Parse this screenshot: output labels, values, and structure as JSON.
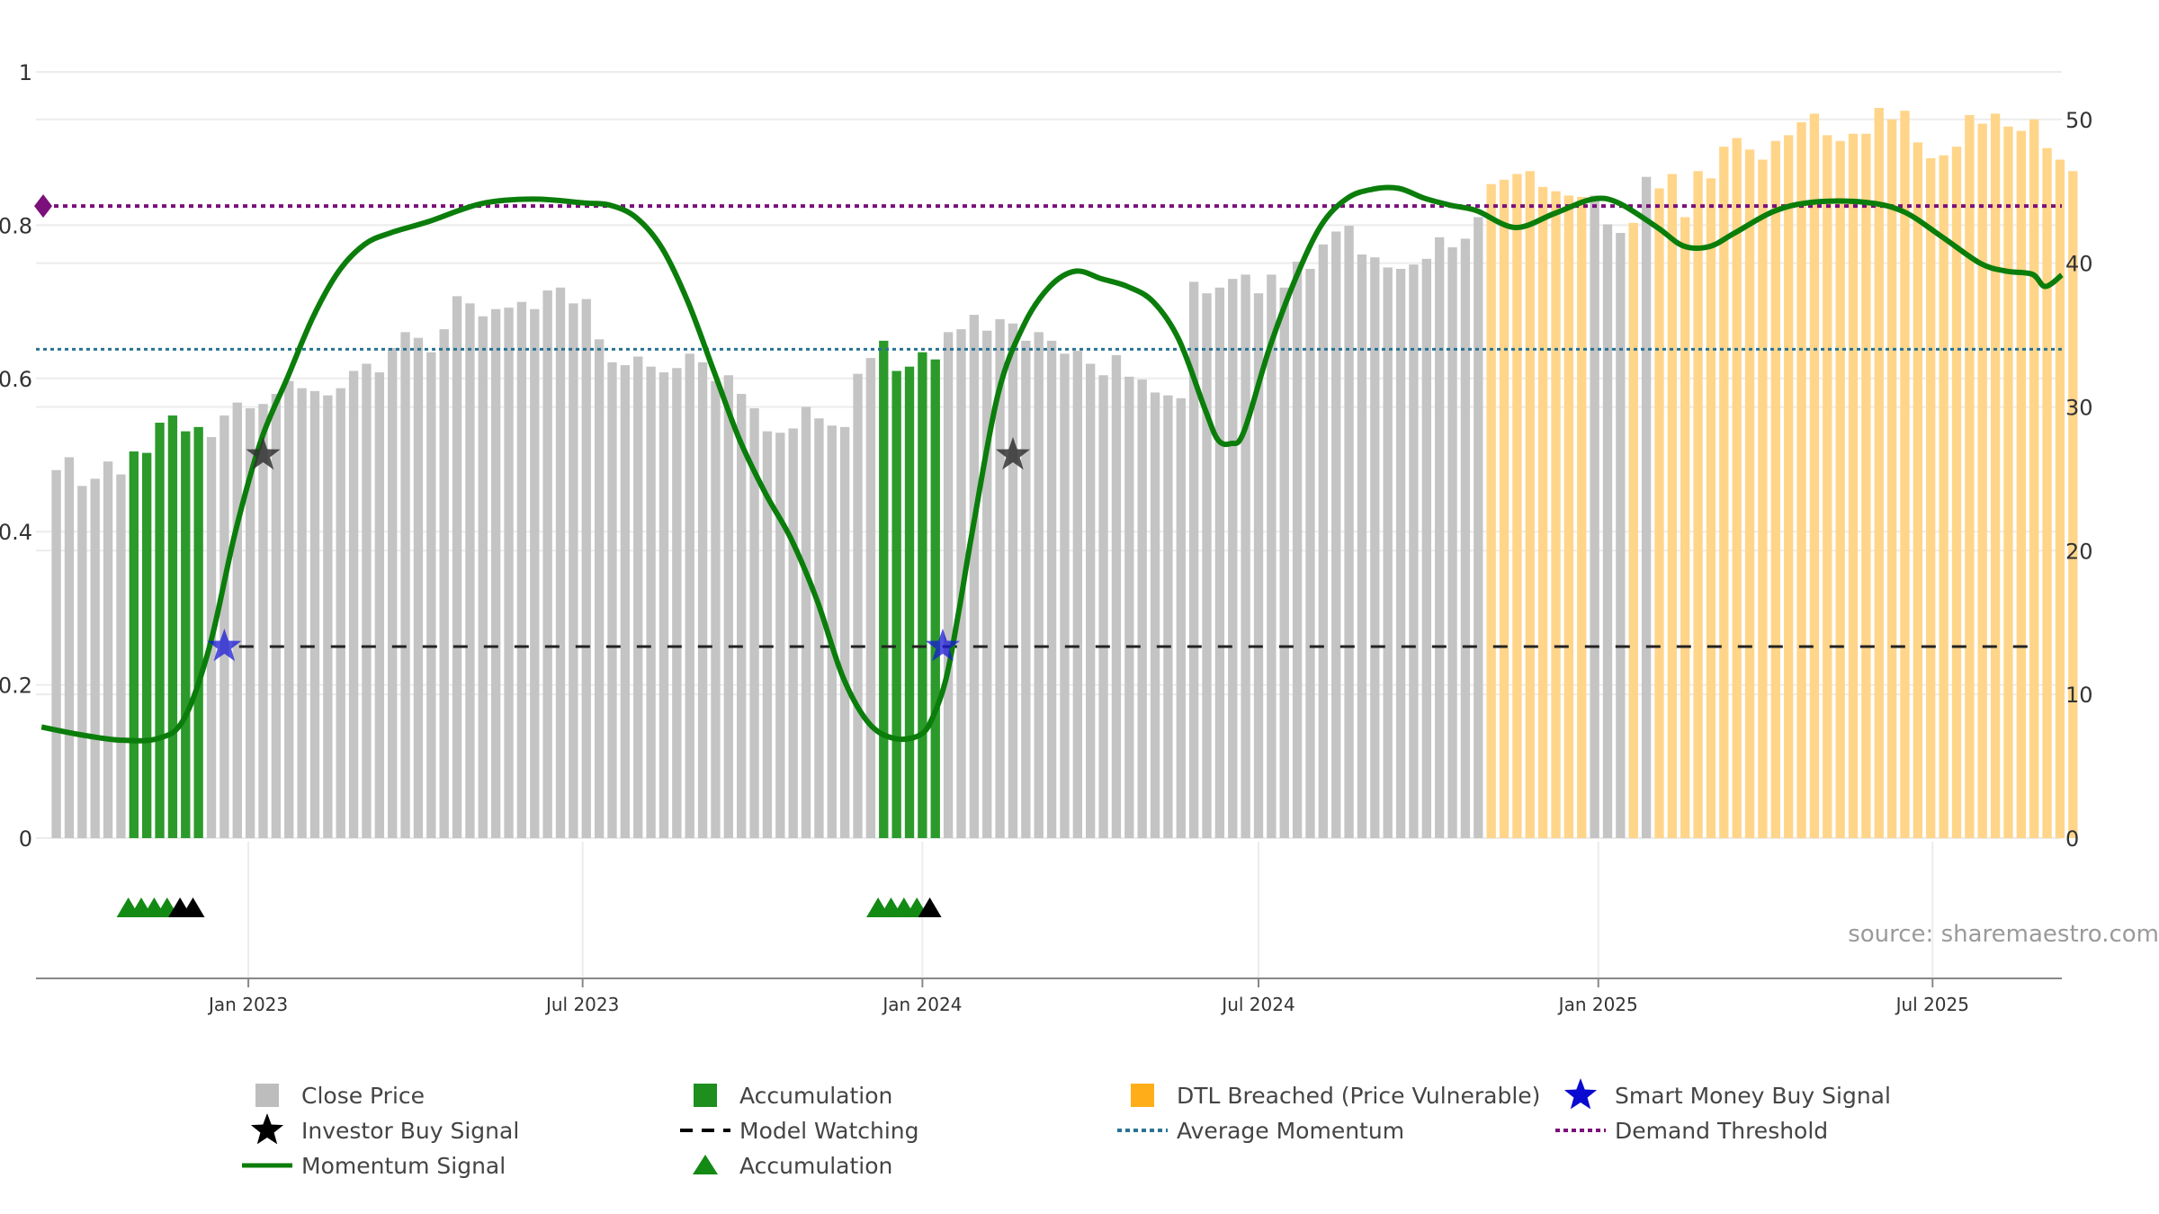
{
  "source_text": "source: sharemaestro.com",
  "colors": {
    "close": "#c4c4c4",
    "accumulation": "#2b9a2b",
    "dtl": "#ffd58a",
    "momentum": "#0b7d0b",
    "momentum_faded": "#5a9a5a",
    "avg": "#2a7394",
    "demand": "#7b0f7b",
    "smart": "#1a1ad6",
    "watch": "#222222",
    "grid": "#ececec"
  },
  "legend": [
    {
      "label": "Close Price",
      "icon": "gray-square"
    },
    {
      "label": "Accumulation",
      "icon": "green-square"
    },
    {
      "label": "DTL Breached (Price Vulnerable)",
      "icon": "orange-square"
    },
    {
      "label": "Smart Money Buy Signal",
      "icon": "blue-star"
    },
    {
      "label": "Investor Buy Signal",
      "icon": "black-star"
    },
    {
      "label": "Model Watching",
      "icon": "dashed-line"
    },
    {
      "label": "Average Momentum",
      "icon": "blue-dotted-line"
    },
    {
      "label": "Demand Threshold",
      "icon": "purple-dotted-line"
    },
    {
      "label": "Momentum Signal",
      "icon": "green-line"
    },
    {
      "label": "Accumulation",
      "icon": "green-triangle"
    }
  ],
  "chart_data": {
    "type": "bar",
    "left_axis": {
      "ticks": [
        "0",
        "0.2",
        "0.4",
        "0.6",
        "0.8",
        "1"
      ],
      "range": [
        0,
        1
      ]
    },
    "right_axis": {
      "ticks": [
        "0",
        "10",
        "20",
        "30",
        "40",
        "50"
      ],
      "range": [
        0,
        53.3
      ]
    },
    "x_ticks": [
      "Jan 2023",
      "Jul 2023",
      "Jan 2024",
      "Jul 2024",
      "Jan 2025",
      "Jul 2025"
    ],
    "x_range": [
      "2022-09-08",
      "2025-09-09"
    ],
    "grid": true,
    "legend_position": "bottom",
    "close_price": {
      "start_date": "2022-09-19",
      "interval_days": 7,
      "values": [
        25.6,
        26.5,
        24.5,
        25.0,
        26.2,
        25.3,
        26.9,
        26.8,
        28.9,
        29.4,
        28.3,
        28.6,
        27.9,
        29.4,
        30.3,
        29.9,
        30.2,
        30.9,
        31.8,
        31.3,
        31.1,
        30.8,
        31.3,
        32.5,
        33.0,
        32.4,
        34.1,
        35.2,
        34.8,
        33.8,
        35.4,
        37.7,
        37.2,
        36.3,
        36.8,
        36.9,
        37.3,
        36.8,
        38.1,
        38.3,
        37.2,
        37.5,
        34.7,
        33.1,
        32.9,
        33.5,
        32.8,
        32.4,
        32.7,
        33.7,
        33.1,
        31.8,
        32.2,
        30.9,
        29.9,
        28.3,
        28.2,
        28.5,
        30.0,
        29.2,
        28.7,
        28.6,
        32.3,
        33.4,
        34.6,
        32.5,
        32.8,
        33.8,
        33.3,
        35.2,
        35.4,
        36.4,
        35.3,
        36.1,
        35.8,
        34.6,
        35.2,
        34.6,
        33.7,
        33.9,
        33.0,
        32.2,
        33.6,
        32.1,
        31.9,
        31.0,
        30.8,
        30.6,
        38.7,
        37.9,
        38.3,
        38.9,
        39.2,
        37.9,
        39.2,
        38.3,
        40.1,
        39.6,
        41.3,
        42.2,
        42.6,
        40.6,
        40.4,
        39.7,
        39.6,
        39.9,
        40.3,
        41.8,
        41.1,
        41.7,
        43.2,
        45.5,
        45.8,
        46.2,
        46.4,
        45.3,
        45.0,
        44.7,
        44.6,
        44.7,
        42.7,
        42.1,
        42.8,
        46.0,
        45.2,
        46.2,
        43.2,
        46.4,
        45.9,
        48.1,
        48.7,
        47.9,
        47.2,
        48.5,
        48.9,
        49.8,
        50.4,
        48.9,
        48.5,
        49.0,
        49.0,
        50.8,
        50.0,
        50.6,
        48.4,
        47.3,
        47.5,
        48.1,
        50.3,
        49.7,
        50.4,
        49.5,
        49.2,
        50.0,
        48.0,
        47.2,
        46.4
      ],
      "accumulation_weeks": [
        6,
        7,
        8,
        9,
        10,
        11,
        64,
        65,
        66,
        67,
        68
      ],
      "dtl_weeks_from": 111,
      "dtl_exclude_weeks": [
        119,
        120,
        121,
        123
      ]
    },
    "momentum_signal": {
      "points": [
        [
          "2022-09-11",
          0.145
        ],
        [
          "2022-10-02",
          0.135
        ],
        [
          "2022-10-23",
          0.128
        ],
        [
          "2022-11-13",
          0.13
        ],
        [
          "2022-11-27",
          0.155
        ],
        [
          "2022-12-11",
          0.25
        ],
        [
          "2022-12-25",
          0.4
        ],
        [
          "2023-01-08",
          0.52
        ],
        [
          "2023-01-22",
          0.6
        ],
        [
          "2023-02-05",
          0.68
        ],
        [
          "2023-02-19",
          0.74
        ],
        [
          "2023-03-05",
          0.775
        ],
        [
          "2023-03-19",
          0.79
        ],
        [
          "2023-04-09",
          0.805
        ],
        [
          "2023-05-07",
          0.828
        ],
        [
          "2023-06-04",
          0.834
        ],
        [
          "2023-07-02",
          0.829
        ],
        [
          "2023-07-16",
          0.826
        ],
        [
          "2023-07-30",
          0.81
        ],
        [
          "2023-08-13",
          0.77
        ],
        [
          "2023-08-27",
          0.7
        ],
        [
          "2023-09-10",
          0.61
        ],
        [
          "2023-09-24",
          0.52
        ],
        [
          "2023-10-08",
          0.45
        ],
        [
          "2023-10-22",
          0.39
        ],
        [
          "2023-11-05",
          0.31
        ],
        [
          "2023-11-19",
          0.21
        ],
        [
          "2023-12-03",
          0.15
        ],
        [
          "2023-12-17",
          0.13
        ],
        [
          "2023-12-31",
          0.135
        ],
        [
          "2024-01-07",
          0.16
        ],
        [
          "2024-01-14",
          0.21
        ],
        [
          "2024-01-21",
          0.3
        ],
        [
          "2024-01-28",
          0.4
        ],
        [
          "2024-02-11",
          0.58
        ],
        [
          "2024-02-25",
          0.67
        ],
        [
          "2024-03-10",
          0.72
        ],
        [
          "2024-03-24",
          0.74
        ],
        [
          "2024-04-07",
          0.73
        ],
        [
          "2024-04-21",
          0.72
        ],
        [
          "2024-05-05",
          0.7
        ],
        [
          "2024-05-19",
          0.65
        ],
        [
          "2024-06-02",
          0.56
        ],
        [
          "2024-06-09",
          0.52
        ],
        [
          "2024-06-16",
          0.515
        ],
        [
          "2024-06-23",
          0.53
        ],
        [
          "2024-07-07",
          0.64
        ],
        [
          "2024-07-21",
          0.73
        ],
        [
          "2024-08-04",
          0.8
        ],
        [
          "2024-08-18",
          0.835
        ],
        [
          "2024-09-01",
          0.847
        ],
        [
          "2024-09-15",
          0.848
        ],
        [
          "2024-09-29",
          0.835
        ],
        [
          "2024-10-13",
          0.826
        ],
        [
          "2024-10-27",
          0.819
        ],
        [
          "2024-11-17",
          0.797
        ],
        [
          "2024-12-08",
          0.815
        ],
        [
          "2024-12-29",
          0.834
        ],
        [
          "2025-01-12",
          0.829
        ],
        [
          "2025-02-02",
          0.797
        ],
        [
          "2025-02-16",
          0.773
        ],
        [
          "2025-03-02",
          0.772
        ],
        [
          "2025-03-16",
          0.79
        ],
        [
          "2025-04-06",
          0.818
        ],
        [
          "2025-04-27",
          0.83
        ],
        [
          "2025-05-25",
          0.83
        ],
        [
          "2025-06-15",
          0.818
        ],
        [
          "2025-07-06",
          0.785
        ],
        [
          "2025-07-27",
          0.75
        ],
        [
          "2025-08-10",
          0.74
        ],
        [
          "2025-08-24",
          0.736
        ],
        [
          "2025-08-31",
          0.72
        ],
        [
          "2025-09-09",
          0.735
        ]
      ]
    },
    "average_momentum": 0.638,
    "demand_threshold": 0.825,
    "model_watching_level": 0.25,
    "model_watching_start": "2022-12-27",
    "smart_money_signals": [
      [
        "2022-12-19",
        0.25
      ],
      [
        "2024-01-12",
        0.25
      ]
    ],
    "investor_buy_signals": [
      [
        "2023-01-09",
        0.5
      ],
      [
        "2024-02-19",
        0.5
      ]
    ],
    "accumulation_markers": [
      {
        "date": "2022-10-28",
        "color": "green"
      },
      {
        "date": "2022-11-04",
        "color": "green"
      },
      {
        "date": "2022-11-11",
        "color": "green"
      },
      {
        "date": "2022-11-18",
        "color": "green"
      },
      {
        "date": "2022-11-25",
        "color": "black"
      },
      {
        "date": "2022-12-02",
        "color": "black"
      },
      {
        "date": "2023-12-08",
        "color": "green"
      },
      {
        "date": "2023-12-15",
        "color": "green"
      },
      {
        "date": "2023-12-22",
        "color": "green"
      },
      {
        "date": "2023-12-29",
        "color": "green"
      },
      {
        "date": "2024-01-05",
        "color": "black"
      }
    ]
  }
}
